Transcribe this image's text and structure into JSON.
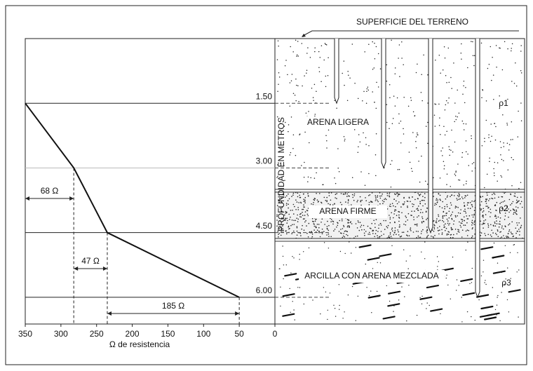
{
  "chart_data": {
    "type": "line",
    "title": "SUPERFICIE DEL TERRENO",
    "xlabel": "Ω de resistencia",
    "ylabel": "PROFUNDIDAD EN METROS",
    "x": [
      350,
      282,
      235,
      50
    ],
    "series": [
      {
        "name": "Resistencia",
        "color": "#111111",
        "values": [
          1.5,
          3.0,
          4.5,
          6.0
        ]
      }
    ],
    "xlim": [
      350,
      0
    ],
    "xticks": [
      350,
      300,
      250,
      200,
      150,
      100,
      50,
      0
    ],
    "ylim": [
      0,
      6.62
    ],
    "yticks": [
      {
        "value": 1.5,
        "label": "1.50"
      },
      {
        "value": 3.0,
        "label": "3.00"
      },
      {
        "value": 4.5,
        "label": "4.50"
      },
      {
        "value": 6.0,
        "label": "6.00"
      }
    ],
    "annotations": [
      "68 Ω",
      "47 Ω",
      "185 Ω"
    ],
    "grid": true
  },
  "diagram": {
    "layers": [
      "ARENA LIGERA",
      "ARENA FIRME",
      "ARCILLA CON ARENA MEZCLADA"
    ],
    "rho": [
      "ρ1",
      "ρ2",
      "ρ3"
    ]
  }
}
